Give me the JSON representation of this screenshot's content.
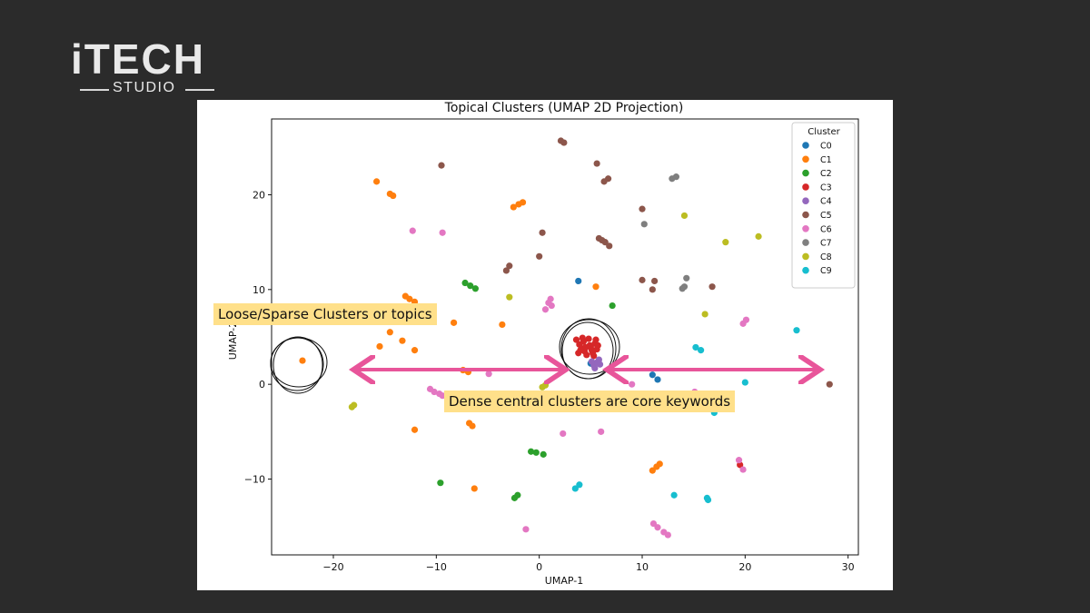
{
  "brand": {
    "name": "iTECH",
    "sub": "STUDIO"
  },
  "annotations": {
    "loose": "Loose/Sparse Clusters or topics",
    "dense": "Dense central clusters are core keywords"
  },
  "colors": {
    "background": "#2b2b2b",
    "callout": "#ffe08a",
    "arrow": "#e8559a"
  },
  "chart_data": {
    "type": "scatter",
    "title": "Topical Clusters (UMAP 2D Projection)",
    "xlabel": "UMAP-1",
    "ylabel": "UMAP-2",
    "xlim": [
      -26,
      31
    ],
    "ylim": [
      -18,
      28
    ],
    "xticks": [
      -20,
      -10,
      0,
      10,
      20,
      30
    ],
    "yticks": [
      -10,
      0,
      10,
      20
    ],
    "legend_title": "Cluster",
    "legend_position": "upper right",
    "grid": false,
    "series": [
      {
        "name": "C0",
        "color": "#1f77b4",
        "points": [
          [
            3.8,
            10.9
          ],
          [
            11.0,
            1.0
          ],
          [
            11.5,
            0.5
          ],
          [
            5.0,
            2.2
          ]
        ]
      },
      {
        "name": "C1",
        "color": "#ff7f0e",
        "points": [
          [
            -15.8,
            21.4
          ],
          [
            -14.5,
            20.1
          ],
          [
            -14.2,
            19.9
          ],
          [
            -2.5,
            18.7
          ],
          [
            -2.0,
            19.0
          ],
          [
            -1.6,
            19.2
          ],
          [
            -13.0,
            9.3
          ],
          [
            -12.6,
            9.0
          ],
          [
            -12.1,
            8.7
          ],
          [
            -8.3,
            6.5
          ],
          [
            -3.6,
            6.3
          ],
          [
            -14.5,
            5.5
          ],
          [
            -13.3,
            4.6
          ],
          [
            -12.1,
            3.6
          ],
          [
            -15.5,
            4.0
          ],
          [
            -23.0,
            2.5
          ],
          [
            -7.4,
            1.5
          ],
          [
            -6.9,
            1.3
          ],
          [
            -12.1,
            -4.8
          ],
          [
            -6.8,
            -4.1
          ],
          [
            -6.5,
            -4.4
          ],
          [
            -6.3,
            -11.0
          ],
          [
            11.0,
            -9.1
          ],
          [
            11.4,
            -8.7
          ],
          [
            11.7,
            -8.4
          ],
          [
            5.5,
            10.3
          ]
        ]
      },
      {
        "name": "C2",
        "color": "#2ca02c",
        "points": [
          [
            -7.2,
            10.7
          ],
          [
            -6.7,
            10.4
          ],
          [
            -6.2,
            10.1
          ],
          [
            7.1,
            8.3
          ],
          [
            -0.8,
            -7.1
          ],
          [
            -0.3,
            -7.2
          ],
          [
            0.4,
            -7.4
          ],
          [
            -9.6,
            -10.4
          ],
          [
            -2.4,
            -12.0
          ],
          [
            -2.1,
            -11.7
          ]
        ]
      },
      {
        "name": "C3",
        "color": "#d62728",
        "points": [
          [
            3.6,
            4.7
          ],
          [
            3.9,
            4.2
          ],
          [
            4.1,
            3.8
          ],
          [
            4.3,
            4.5
          ],
          [
            4.4,
            3.5
          ],
          [
            4.6,
            3.1
          ],
          [
            4.8,
            4.8
          ],
          [
            5.0,
            3.9
          ],
          [
            5.2,
            3.3
          ],
          [
            5.4,
            4.3
          ],
          [
            5.6,
            3.7
          ],
          [
            3.8,
            3.3
          ],
          [
            4.2,
            4.9
          ],
          [
            4.9,
            4.1
          ],
          [
            5.3,
            3.0
          ],
          [
            5.5,
            4.7
          ],
          [
            4.5,
            3.9
          ],
          [
            5.1,
            3.6
          ],
          [
            4.0,
            3.6
          ],
          [
            5.7,
            4.1
          ],
          [
            19.5,
            -8.5
          ]
        ]
      },
      {
        "name": "C4",
        "color": "#9467bd",
        "points": [
          [
            5.3,
            2.0
          ],
          [
            5.6,
            2.3
          ],
          [
            5.8,
            2.6
          ],
          [
            5.4,
            1.7
          ],
          [
            5.9,
            2.1
          ],
          [
            5.1,
            2.4
          ]
        ]
      },
      {
        "name": "C5",
        "color": "#8c564b",
        "points": [
          [
            2.1,
            25.7
          ],
          [
            2.4,
            25.5
          ],
          [
            5.6,
            23.3
          ],
          [
            6.3,
            21.4
          ],
          [
            6.7,
            21.7
          ],
          [
            -9.5,
            23.1
          ],
          [
            0.3,
            16.0
          ],
          [
            5.8,
            15.4
          ],
          [
            6.1,
            15.2
          ],
          [
            6.4,
            15.0
          ],
          [
            6.8,
            14.6
          ],
          [
            10.0,
            18.5
          ],
          [
            -3.2,
            12.0
          ],
          [
            -2.9,
            12.5
          ],
          [
            0.0,
            13.5
          ],
          [
            10.0,
            11.0
          ],
          [
            11.2,
            10.9
          ],
          [
            11.0,
            10.0
          ],
          [
            16.8,
            10.3
          ],
          [
            28.2,
            0.0
          ]
        ]
      },
      {
        "name": "C6",
        "color": "#e377c2",
        "points": [
          [
            -12.3,
            16.2
          ],
          [
            -9.4,
            16.0
          ],
          [
            -4.9,
            1.1
          ],
          [
            1.1,
            9.0
          ],
          [
            1.2,
            8.3
          ],
          [
            0.9,
            8.6
          ],
          [
            0.6,
            7.9
          ],
          [
            -10.6,
            -0.5
          ],
          [
            -10.2,
            -0.8
          ],
          [
            -9.7,
            -1.0
          ],
          [
            -9.4,
            -1.2
          ],
          [
            15.1,
            -0.8
          ],
          [
            20.1,
            6.8
          ],
          [
            19.8,
            6.4
          ],
          [
            19.4,
            -8.0
          ],
          [
            19.8,
            -9.0
          ],
          [
            2.3,
            -5.2
          ],
          [
            6.0,
            -5.0
          ],
          [
            -1.3,
            -15.3
          ],
          [
            11.1,
            -14.7
          ],
          [
            11.5,
            -15.1
          ],
          [
            12.1,
            -15.6
          ],
          [
            12.5,
            -15.9
          ],
          [
            9.0,
            0.0
          ]
        ]
      },
      {
        "name": "C7",
        "color": "#7f7f7f",
        "points": [
          [
            12.9,
            21.7
          ],
          [
            13.3,
            21.9
          ],
          [
            10.2,
            16.9
          ],
          [
            13.9,
            10.1
          ],
          [
            14.1,
            10.3
          ],
          [
            14.3,
            11.2
          ]
        ]
      },
      {
        "name": "C8",
        "color": "#bcbd22",
        "points": [
          [
            14.1,
            17.8
          ],
          [
            18.1,
            15.0
          ],
          [
            21.3,
            15.6
          ],
          [
            -2.9,
            9.2
          ],
          [
            16.1,
            7.4
          ],
          [
            -18.0,
            -2.2
          ],
          [
            -18.2,
            -2.4
          ],
          [
            0.6,
            -0.1
          ],
          [
            0.3,
            -0.3
          ]
        ]
      },
      {
        "name": "C9",
        "color": "#17becf",
        "points": [
          [
            25.0,
            5.7
          ],
          [
            15.2,
            3.9
          ],
          [
            15.7,
            3.6
          ],
          [
            20.0,
            0.2
          ],
          [
            17.0,
            -3.0
          ],
          [
            3.9,
            -10.6
          ],
          [
            3.5,
            -11.0
          ],
          [
            13.1,
            -11.7
          ],
          [
            16.3,
            -12.0
          ],
          [
            16.4,
            -12.2
          ]
        ]
      }
    ]
  }
}
